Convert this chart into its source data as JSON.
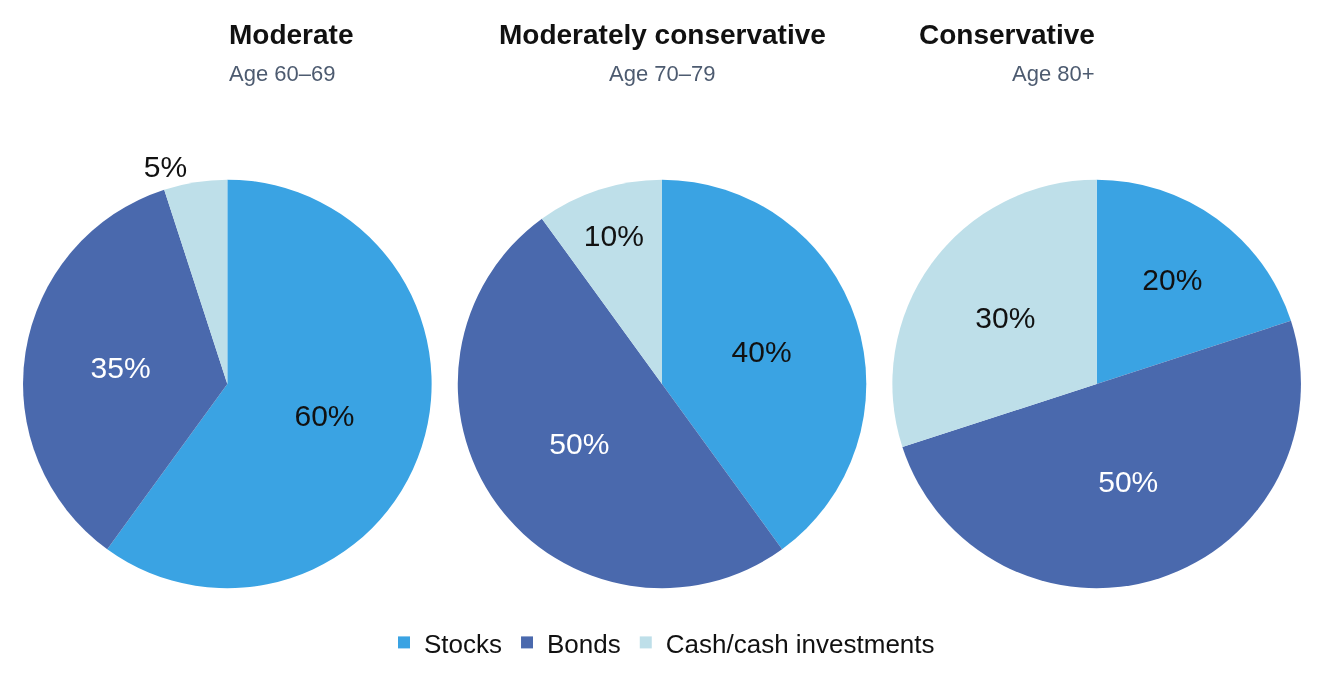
{
  "chart_data": [
    {
      "type": "pie",
      "title": "Moderate",
      "subtitle": "Age 60–69",
      "categories": [
        "Stocks",
        "Bonds",
        "Cash/cash investments"
      ],
      "values": [
        60,
        35,
        5
      ],
      "value_labels": [
        "60%",
        "35%",
        "5%"
      ],
      "colors": [
        "#3aa3e3",
        "#4a69ad",
        "#bedfe9"
      ],
      "legend": "bottom"
    },
    {
      "type": "pie",
      "title": "Moderately conservative",
      "subtitle": "Age 70–79",
      "categories": [
        null,
        null,
        null
      ],
      "values": [
        40,
        50,
        10
      ],
      "value_labels": [
        "40%",
        "50%",
        "10%"
      ],
      "colors": [
        "#3aa3e3",
        "#4a69ad",
        "#bedfe9"
      ]
    },
    {
      "type": "pie",
      "title": "Conservative",
      "subtitle": "Age 80+",
      "categories": [
        null,
        null,
        null
      ],
      "values": [
        20,
        50,
        30
      ],
      "value_labels": [
        "20%",
        "50%",
        "30%"
      ],
      "colors": [
        "#3aa3e3",
        "#4a69ad",
        "#bedfe9"
      ]
    }
  ]
}
